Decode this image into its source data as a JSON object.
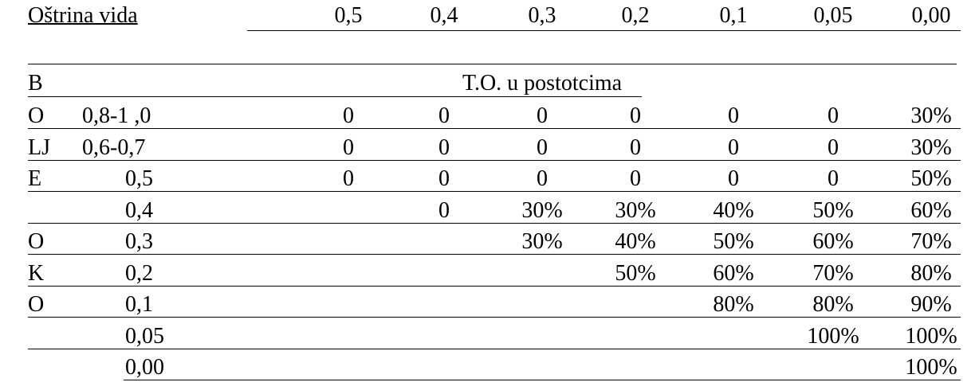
{
  "table": {
    "header": {
      "label": "Oštrina vida",
      "columns": [
        "0,5",
        "0,4",
        "0,3",
        "0,2",
        "0,1",
        "0,05",
        "0,00"
      ]
    },
    "group_label": "B",
    "caption": "T.O. u postotcima",
    "rows": [
      {
        "letter": "O",
        "acuity": "0,8-1 ,0",
        "cells": [
          "0",
          "0",
          "0",
          "0",
          "0",
          "0",
          "30%"
        ]
      },
      {
        "letter": "LJ",
        "acuity": "0,6-0,7",
        "cells": [
          "0",
          "0",
          "0",
          "0",
          "0",
          "0",
          "30%"
        ]
      },
      {
        "letter": "E",
        "acuity": "0,5",
        "cells": [
          "0",
          "0",
          "0",
          "0",
          "0",
          "0",
          "50%"
        ]
      },
      {
        "letter": null,
        "acuity": "0,4",
        "cells": [
          null,
          "0",
          "30%",
          "30%",
          "40%",
          "50%",
          "60%"
        ]
      },
      {
        "letter": "O",
        "acuity": "0,3",
        "cells": [
          null,
          null,
          "30%",
          "40%",
          "50%",
          "60%",
          "70%"
        ]
      },
      {
        "letter": "K",
        "acuity": "0,2",
        "cells": [
          null,
          null,
          null,
          "50%",
          "60%",
          "70%",
          "80%"
        ]
      },
      {
        "letter": "O",
        "acuity": "0,1",
        "cells": [
          null,
          null,
          null,
          null,
          "80%",
          "80%",
          "90%"
        ]
      },
      {
        "letter": null,
        "acuity": "0,05",
        "cells": [
          null,
          null,
          null,
          null,
          null,
          "100%",
          "100%"
        ]
      },
      {
        "letter": null,
        "acuity": "0,00",
        "cells": [
          null,
          null,
          null,
          null,
          null,
          null,
          "100%"
        ]
      }
    ]
  }
}
